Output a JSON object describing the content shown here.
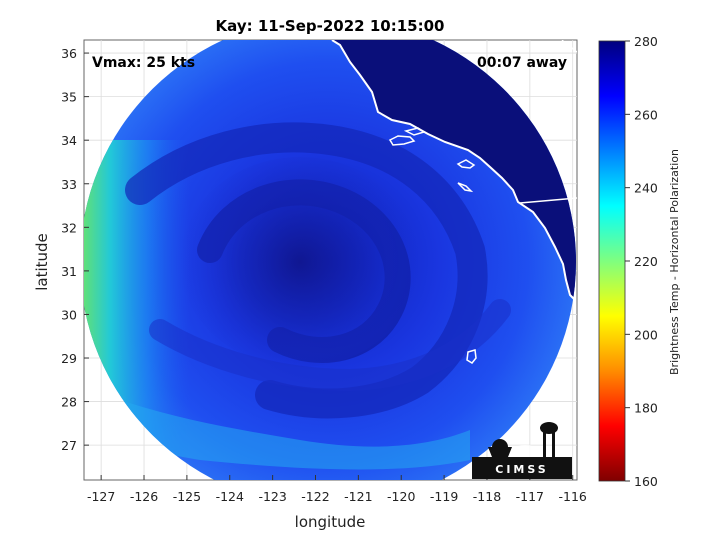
{
  "chart_data": {
    "type": "heatmap",
    "title": "Kay: 11-Sep-2022 10:15:00",
    "xlabel": "longitude",
    "ylabel": "latitude",
    "x_ticks": [
      "-127",
      "-126",
      "-125",
      "-124",
      "-123",
      "-122",
      "-121",
      "-120",
      "-119",
      "-118",
      "-117",
      "-116"
    ],
    "y_ticks": [
      "27",
      "28",
      "29",
      "30",
      "31",
      "32",
      "33",
      "34",
      "35",
      "36"
    ],
    "xlim": [
      -127.4,
      -115.9
    ],
    "ylim": [
      26.2,
      36.3
    ],
    "grid": true,
    "colorbar": {
      "label": "Brightness Temp - Horizontal Polarization",
      "ticks": [
        "160",
        "180",
        "200",
        "220",
        "240",
        "260",
        "280"
      ],
      "range": [
        160,
        280
      ],
      "colormap": [
        "#7f0000",
        "#ff0000",
        "#ff8c00",
        "#ffff00",
        "#7fff7f",
        "#00ffff",
        "#007fff",
        "#0000ff",
        "#00007f"
      ]
    },
    "storm_center": {
      "lon": -121.9,
      "lat": 31.2
    },
    "swath_center": {
      "lon": -121.65,
      "lat": 31.1
    },
    "annotations": {
      "vmax": "Vmax: 25 kts",
      "time_away": "00:07 away"
    }
  },
  "logo": {
    "text": "CIMSS"
  }
}
